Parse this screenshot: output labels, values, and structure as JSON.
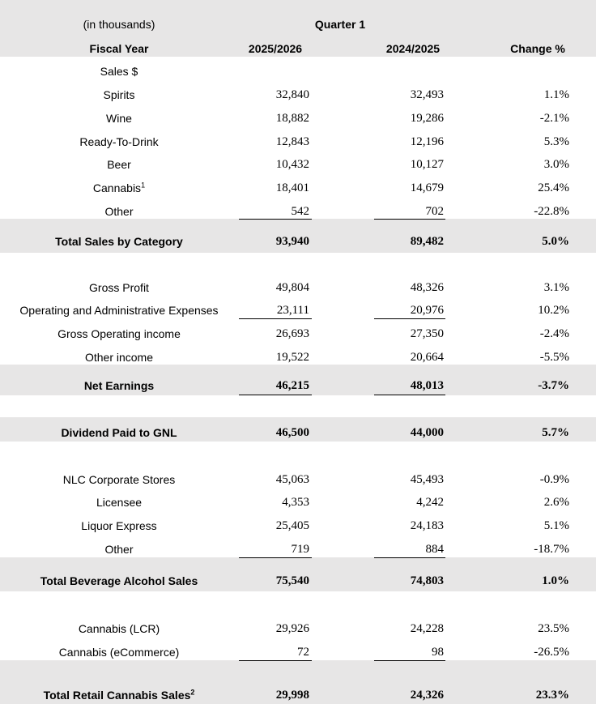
{
  "header": {
    "units": "(in thousands)",
    "period": "Quarter 1",
    "columns": [
      "Fiscal Year",
      "2025/2026",
      "2024/2025",
      "Change %"
    ]
  },
  "rows": [
    {
      "label": "Sales $"
    },
    {
      "label": "Spirits",
      "cols": [
        "32,840",
        "32,493",
        "1.1%"
      ]
    },
    {
      "label": "Wine",
      "cols": [
        "18,882",
        "19,286",
        "-2.1%"
      ]
    },
    {
      "label": "Ready-To-Drink",
      "cols": [
        "12,843",
        "12,196",
        "5.3%"
      ]
    },
    {
      "label": "Beer",
      "cols": [
        "10,432",
        "10,127",
        "3.0%"
      ]
    },
    {
      "label": "Cannabis",
      "sup": "1",
      "cols": [
        "18,401",
        "14,679",
        "25.4%"
      ]
    },
    {
      "label": "Other",
      "cols": [
        "542",
        "702",
        "-22.8%"
      ]
    },
    {
      "label": "Total Sales by Category",
      "cols": [
        "93,940",
        "89,482",
        "5.0%"
      ]
    },
    {
      "label": "Gross Profit",
      "cols": [
        "49,804",
        "48,326",
        "3.1%"
      ]
    },
    {
      "label": "Operating and Administrative Expenses",
      "cols": [
        "23,111",
        "20,976",
        "10.2%"
      ]
    },
    {
      "label": "Gross Operating income",
      "cols": [
        "26,693",
        "27,350",
        "-2.4%"
      ]
    },
    {
      "label": "Other income",
      "cols": [
        "19,522",
        "20,664",
        "-5.5%"
      ]
    },
    {
      "label": "Net Earnings",
      "cols": [
        "46,215",
        "48,013",
        "-3.7%"
      ]
    },
    {
      "label": "Dividend Paid to GNL",
      "cols": [
        "46,500",
        "44,000",
        "5.7%"
      ]
    },
    {
      "label": "NLC Corporate Stores",
      "cols": [
        "45,063",
        "45,493",
        "-0.9%"
      ]
    },
    {
      "label": "Licensee",
      "cols": [
        "4,353",
        "4,242",
        "2.6%"
      ]
    },
    {
      "label": "Liquor Express",
      "cols": [
        "25,405",
        "24,183",
        "5.1%"
      ]
    },
    {
      "label": "Other",
      "cols": [
        "719",
        "884",
        "-18.7%"
      ]
    },
    {
      "label": "Total Beverage Alcohol Sales",
      "cols": [
        "75,540",
        "74,803",
        "1.0%"
      ]
    },
    {
      "label": "Cannabis (LCR)",
      "cols": [
        "29,926",
        "24,228",
        "23.5%"
      ]
    },
    {
      "label": "Cannabis (eCommerce)",
      "cols": [
        "72",
        "98",
        "-26.5%"
      ]
    },
    {
      "label": "Total Retail Cannabis Sales",
      "sup": "2",
      "cols": [
        "29,998",
        "24,326",
        "23.3%"
      ]
    }
  ]
}
